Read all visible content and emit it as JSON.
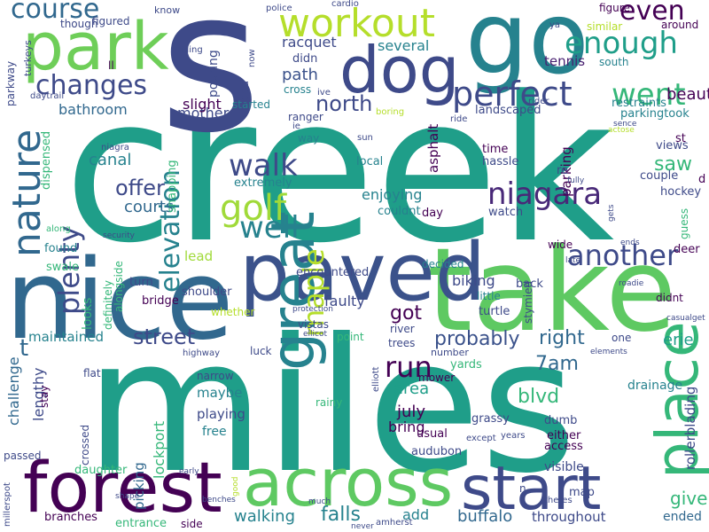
{
  "words": [
    {
      "text": "creek",
      "color": "#1f9e89"
    },
    {
      "text": "miles",
      "color": "#1f9e89"
    },
    {
      "text": "s",
      "color": "#3e4a89"
    },
    {
      "text": "take",
      "color": "#5ec962"
    },
    {
      "text": "nice",
      "color": "#31688e"
    },
    {
      "text": "go",
      "color": "#26828e"
    },
    {
      "text": "park",
      "color": "#6ece58"
    },
    {
      "text": "forest",
      "color": "#440154"
    },
    {
      "text": "across",
      "color": "#5ec962"
    },
    {
      "text": "paved",
      "color": "#3b528b"
    },
    {
      "text": "start",
      "color": "#3e4a89"
    },
    {
      "text": "dog",
      "color": "#3e4a89"
    },
    {
      "text": "workout",
      "color": "#b5de2b"
    },
    {
      "text": "place",
      "color": "#35b779"
    },
    {
      "text": "great",
      "color": "#26828e"
    },
    {
      "text": "perfect",
      "color": "#3e4a89"
    },
    {
      "text": "nature",
      "color": "#31688e"
    },
    {
      "text": "enough",
      "color": "#1f9e89"
    },
    {
      "text": "course",
      "color": "#31688e"
    },
    {
      "text": "even",
      "color": "#440154"
    },
    {
      "text": "changes",
      "color": "#3e4a89"
    },
    {
      "text": "went",
      "color": "#35b779"
    },
    {
      "text": "golf",
      "color": "#a0da39"
    },
    {
      "text": "walk",
      "color": "#3e4a89"
    },
    {
      "text": "well",
      "color": "#26828e"
    },
    {
      "text": "another",
      "color": "#3e4a89"
    },
    {
      "text": "elevation",
      "color": "#26828e"
    },
    {
      "text": "niagara",
      "color": "#482878"
    },
    {
      "text": "maple",
      "color": "#b5de2b"
    },
    {
      "text": "plenty",
      "color": "#3e4a89"
    },
    {
      "text": "run",
      "color": "#440154"
    },
    {
      "text": "right",
      "color": "#31688e"
    },
    {
      "text": "probably",
      "color": "#3b528b"
    },
    {
      "text": "offer",
      "color": "#3e4a89"
    },
    {
      "text": "north",
      "color": "#3e4a89"
    },
    {
      "text": "saw",
      "color": "#35b779"
    },
    {
      "text": "street",
      "color": "#3e4a89"
    },
    {
      "text": "falls",
      "color": "#26828e"
    },
    {
      "text": "buffalo",
      "color": "#31688e"
    },
    {
      "text": "walking",
      "color": "#26828e"
    },
    {
      "text": "give",
      "color": "#35b779"
    },
    {
      "text": "ended",
      "color": "#31688e"
    },
    {
      "text": "blvd",
      "color": "#35b779"
    },
    {
      "text": "t",
      "color": "#31688e"
    },
    {
      "text": "got",
      "color": "#440154"
    },
    {
      "text": "area",
      "color": "#1f9e89"
    },
    {
      "text": "7am",
      "color": "#31688e"
    },
    {
      "text": "july",
      "color": "#440154"
    },
    {
      "text": "bring",
      "color": "#440154"
    },
    {
      "text": "erie",
      "color": "#1f9e89"
    },
    {
      "text": "tennis",
      "color": "#481f70"
    },
    {
      "text": "beauty",
      "color": "#440154"
    },
    {
      "text": "path",
      "color": "#3b528b"
    },
    {
      "text": "mother",
      "color": "#3e4a89"
    },
    {
      "text": "racquet",
      "color": "#3e4a89"
    },
    {
      "text": "several",
      "color": "#26828e"
    },
    {
      "text": "bathroom",
      "color": "#31688e"
    },
    {
      "text": "slight",
      "color": "#440154"
    },
    {
      "text": "canal",
      "color": "#26828e"
    },
    {
      "text": "courts",
      "color": "#31688e"
    },
    {
      "text": "enjoying",
      "color": "#26828e"
    },
    {
      "text": "faulty",
      "color": "#3e4a89"
    },
    {
      "text": "biking",
      "color": "#3e4a89"
    },
    {
      "text": "maintained",
      "color": "#26828e"
    },
    {
      "text": "challenge",
      "color": "#31688e"
    },
    {
      "text": "lengthy",
      "color": "#3e4a89"
    },
    {
      "text": "maybe",
      "color": "#26828e"
    },
    {
      "text": "lockport",
      "color": "#35b779"
    },
    {
      "text": "free",
      "color": "#26828e"
    },
    {
      "text": "picking",
      "color": "#31688e"
    },
    {
      "text": "playing",
      "color": "#3e4a89"
    },
    {
      "text": "rollerblading",
      "color": "#3e4a89"
    },
    {
      "text": "parking",
      "color": "#440154"
    },
    {
      "text": "asphalt",
      "color": "#440154"
    },
    {
      "text": "add",
      "color": "#26828e"
    },
    {
      "text": "throughout",
      "color": "#3e4a89"
    },
    {
      "text": "lead",
      "color": "#a0da39"
    },
    {
      "text": "decided",
      "color": "#26828e"
    },
    {
      "text": "encountered",
      "color": "#3e4a89"
    },
    {
      "text": "well",
      "color": "#26828e"
    },
    {
      "text": "visible",
      "color": "#3e4a89"
    },
    {
      "text": "drainage",
      "color": "#26828e"
    },
    {
      "text": "map",
      "color": "#3e4a89"
    },
    {
      "text": "watch",
      "color": "#3e4a89"
    },
    {
      "text": "time",
      "color": "#440154"
    },
    {
      "text": "hassle",
      "color": "#3e4a89"
    },
    {
      "text": "local",
      "color": "#26828e"
    },
    {
      "text": "extremely",
      "color": "#26828e"
    },
    {
      "text": "couldnt",
      "color": "#26828e"
    },
    {
      "text": "day",
      "color": "#440154"
    },
    {
      "text": "views",
      "color": "#3e4a89"
    },
    {
      "text": "couple",
      "color": "#3e4a89"
    },
    {
      "text": "st",
      "color": "#440154"
    },
    {
      "text": "hockey",
      "color": "#3e4a89"
    },
    {
      "text": "deer",
      "color": "#440154"
    },
    {
      "text": "saw",
      "color": "#35b779"
    },
    {
      "text": "parkingtook",
      "color": "#26828e"
    },
    {
      "text": "restraints",
      "color": "#26828e"
    },
    {
      "text": "landscaped",
      "color": "#3e4a89"
    },
    {
      "text": "south",
      "color": "#26828e"
    },
    {
      "text": "around",
      "color": "#440154"
    },
    {
      "text": "similar",
      "color": "#b5de2b"
    },
    {
      "text": "figure",
      "color": "#440154"
    },
    {
      "text": "know",
      "color": "#3e4a89"
    },
    {
      "text": "figured",
      "color": "#3e4a89"
    },
    {
      "text": "though",
      "color": "#3e4a89"
    },
    {
      "text": "ll",
      "color": "#440154"
    },
    {
      "text": "didn",
      "color": "#3e4a89"
    },
    {
      "text": "cross",
      "color": "#26828e"
    },
    {
      "text": "started",
      "color": "#26828e"
    },
    {
      "text": "ranger",
      "color": "#3e4a89"
    },
    {
      "text": "way",
      "color": "#26828e"
    },
    {
      "text": "sun",
      "color": "#3e4a89"
    },
    {
      "text": "ie",
      "color": "#3e4a89"
    },
    {
      "text": "ive",
      "color": "#3e4a89"
    },
    {
      "text": "rider",
      "color": "#3e4a89"
    },
    {
      "text": "boring",
      "color": "#b5de2b"
    },
    {
      "text": "ride",
      "color": "#3e4a89"
    },
    {
      "text": "pouring",
      "color": "#3e4a89"
    },
    {
      "text": "road",
      "color": "#3e4a89"
    },
    {
      "text": "now",
      "color": "#3e4a89"
    },
    {
      "text": "riding",
      "color": "#3e4a89"
    },
    {
      "text": "police",
      "color": "#3e4a89"
    },
    {
      "text": "cardio",
      "color": "#3e4a89"
    },
    {
      "text": "ya",
      "color": "#3e4a89"
    },
    {
      "text": "parkway",
      "color": "#3e4a89"
    },
    {
      "text": "turkeys",
      "color": "#3e4a89"
    },
    {
      "text": "daytrail",
      "color": "#3e4a89"
    },
    {
      "text": "dispensed",
      "color": "#35b779"
    },
    {
      "text": "niagra",
      "color": "#3e4a89"
    },
    {
      "text": "snapping",
      "color": "#35b779"
    },
    {
      "text": "security",
      "color": "#3e4a89"
    },
    {
      "text": "along",
      "color": "#35b779"
    },
    {
      "text": "found",
      "color": "#26828e"
    },
    {
      "text": "swale",
      "color": "#35b779"
    },
    {
      "text": "turn",
      "color": "#3e4a89"
    },
    {
      "text": "shoulder",
      "color": "#3e4a89"
    },
    {
      "text": "alongside",
      "color": "#35b779"
    },
    {
      "text": "looks",
      "color": "#35b779"
    },
    {
      "text": "definitely",
      "color": "#35b779"
    },
    {
      "text": "bridge",
      "color": "#440154"
    },
    {
      "text": "whether",
      "color": "#b5de2b"
    },
    {
      "text": "vistas",
      "color": "#3e4a89"
    },
    {
      "text": "ellicot",
      "color": "#3e4a89"
    },
    {
      "text": "little",
      "color": "#26828e"
    },
    {
      "text": "back",
      "color": "#3e4a89"
    },
    {
      "text": "turtle",
      "color": "#3e4a89"
    },
    {
      "text": "yards",
      "color": "#35b779"
    },
    {
      "text": "stymied",
      "color": "#3e4a89"
    },
    {
      "text": "didnt",
      "color": "#440154"
    },
    {
      "text": "flat",
      "color": "#3e4a89"
    },
    {
      "text": "luck",
      "color": "#3e4a89"
    },
    {
      "text": "point",
      "color": "#35b779"
    },
    {
      "text": "river",
      "color": "#3e4a89"
    },
    {
      "text": "trees",
      "color": "#3e4a89"
    },
    {
      "text": "number",
      "color": "#3e4a89"
    },
    {
      "text": "elliott",
      "color": "#3e4a89"
    },
    {
      "text": "narrow",
      "color": "#3e4a89"
    },
    {
      "text": "highway",
      "color": "#3e4a89"
    },
    {
      "text": "rainy",
      "color": "#35b779"
    },
    {
      "text": "stay",
      "color": "#440154"
    },
    {
      "text": "crossed",
      "color": "#3e4a89"
    },
    {
      "text": "passed",
      "color": "#3e4a89"
    },
    {
      "text": "daughter",
      "color": "#35b779"
    },
    {
      "text": "branches",
      "color": "#440154"
    },
    {
      "text": "entrance",
      "color": "#35b779"
    },
    {
      "text": "side",
      "color": "#440154"
    },
    {
      "text": "shape",
      "color": "#3e4a89"
    },
    {
      "text": "early",
      "color": "#3e4a89"
    },
    {
      "text": "benches",
      "color": "#3e4a89"
    },
    {
      "text": "good",
      "color": "#b5de2b"
    },
    {
      "text": "millerspot",
      "color": "#3e4a89"
    },
    {
      "text": "amherst",
      "color": "#3e4a89"
    },
    {
      "text": "much",
      "color": "#3e4a89"
    },
    {
      "text": "theres",
      "color": "#3e4a89"
    },
    {
      "text": "access",
      "color": "#440154"
    },
    {
      "text": "years",
      "color": "#3e4a89"
    },
    {
      "text": "except",
      "color": "#3e4a89"
    },
    {
      "text": "either",
      "color": "#440154"
    },
    {
      "text": "dumb",
      "color": "#3e4a89"
    },
    {
      "text": "grassy",
      "color": "#3e4a89"
    },
    {
      "text": "usual",
      "color": "#440154"
    },
    {
      "text": "audubon",
      "color": "#3e4a89"
    },
    {
      "text": "n",
      "color": "#3e4a89"
    },
    {
      "text": "one",
      "color": "#3e4a89"
    },
    {
      "text": "elements",
      "color": "#3e4a89"
    },
    {
      "text": "took",
      "color": "#3e4a89"
    },
    {
      "text": "wide",
      "color": "#440154"
    },
    {
      "text": "mower",
      "color": "#440154"
    },
    {
      "text": "protection",
      "color": "#3e4a89"
    },
    {
      "text": "never",
      "color": "#3e4a89"
    },
    {
      "text": "casualget",
      "color": "#3e4a89"
    },
    {
      "text": "late",
      "color": "#3e4a89"
    },
    {
      "text": "roadie",
      "color": "#3e4a89"
    },
    {
      "text": "ends",
      "color": "#3e4a89"
    },
    {
      "text": "gets",
      "color": "#3e4a89"
    },
    {
      "text": "guess",
      "color": "#35b779"
    },
    {
      "text": "d",
      "color": "#440154"
    },
    {
      "text": "re",
      "color": "#3e4a89"
    },
    {
      "text": "sence",
      "color": "#3e4a89"
    },
    {
      "text": "actose",
      "color": "#b5de2b"
    },
    {
      "text": "fully",
      "color": "#3e4a89"
    }
  ]
}
